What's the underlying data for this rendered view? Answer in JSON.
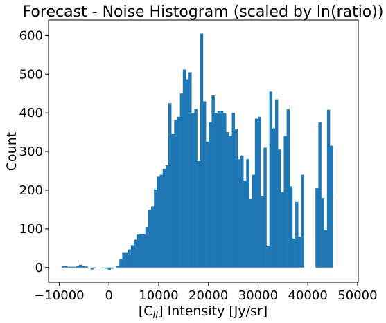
{
  "chart_data": {
    "type": "bar",
    "title": "Forecast - Noise Histogram (scaled by ln(ratio))",
    "xlabel_prefix": "[C",
    "xlabel_sub": "II",
    "xlabel_suffix": "] Intensity [Jy/sr]",
    "ylabel": "Count",
    "xlim": [
      -12150,
      50150
    ],
    "ylim": [
      -38,
      640
    ],
    "x_ticks": [
      -10000,
      0,
      10000,
      20000,
      30000,
      40000,
      50000
    ],
    "x_tick_labels": [
      "−10000",
      "0",
      "10000",
      "20000",
      "30000",
      "40000",
      "50000"
    ],
    "y_ticks": [
      0,
      100,
      200,
      300,
      400,
      500,
      600
    ],
    "y_tick_labels": [
      "0",
      "100",
      "200",
      "300",
      "400",
      "500",
      "600"
    ],
    "bar_color": "#1f77b4",
    "bin_start": -9500,
    "bin_width": 580,
    "counts": [
      3,
      5,
      2,
      2,
      2,
      5,
      7,
      5,
      3,
      0,
      -5,
      -2,
      0,
      0,
      -2,
      -3,
      -6,
      -3,
      0,
      5,
      22,
      38,
      38,
      47,
      58,
      72,
      85,
      86,
      86,
      105,
      150,
      158,
      202,
      235,
      240,
      255,
      265,
      425,
      345,
      382,
      390,
      450,
      512,
      487,
      505,
      400,
      410,
      275,
      605,
      430,
      325,
      375,
      445,
      400,
      405,
      405,
      400,
      350,
      340,
      400,
      358,
      280,
      290,
      225,
      280,
      178,
      240,
      385,
      390,
      185,
      310,
      55,
      455,
      360,
      435,
      305,
      195,
      340,
      410,
      210,
      75,
      170,
      80,
      240,
      0,
      0,
      0,
      0,
      205,
      375,
      180,
      98,
      408,
      315
    ]
  }
}
